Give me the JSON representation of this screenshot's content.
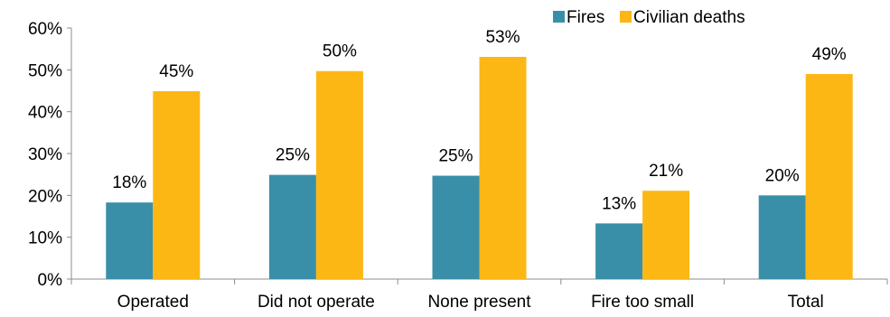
{
  "chart_data": {
    "type": "bar",
    "categories": [
      "Operated",
      "Did not operate",
      "None present",
      "Fire too small",
      "Total"
    ],
    "series": [
      {
        "name": "Fires",
        "values": [
          18.3,
          24.9,
          24.7,
          13.3,
          20.0
        ],
        "labels": [
          "18%",
          "25%",
          "25%",
          "13%",
          "20%"
        ],
        "color": "#3A8FA8"
      },
      {
        "name": "Civilian deaths",
        "values": [
          44.9,
          49.7,
          53.1,
          21.1,
          49.0
        ],
        "labels": [
          "45%",
          "50%",
          "53%",
          "21%",
          "49%"
        ],
        "color": "#FCB715"
      }
    ],
    "yticks": [
      "0%",
      "10%",
      "20%",
      "30%",
      "40%",
      "50%",
      "60%"
    ],
    "ylim": [
      0,
      60
    ],
    "legend_position": "top-right",
    "grid": false
  }
}
